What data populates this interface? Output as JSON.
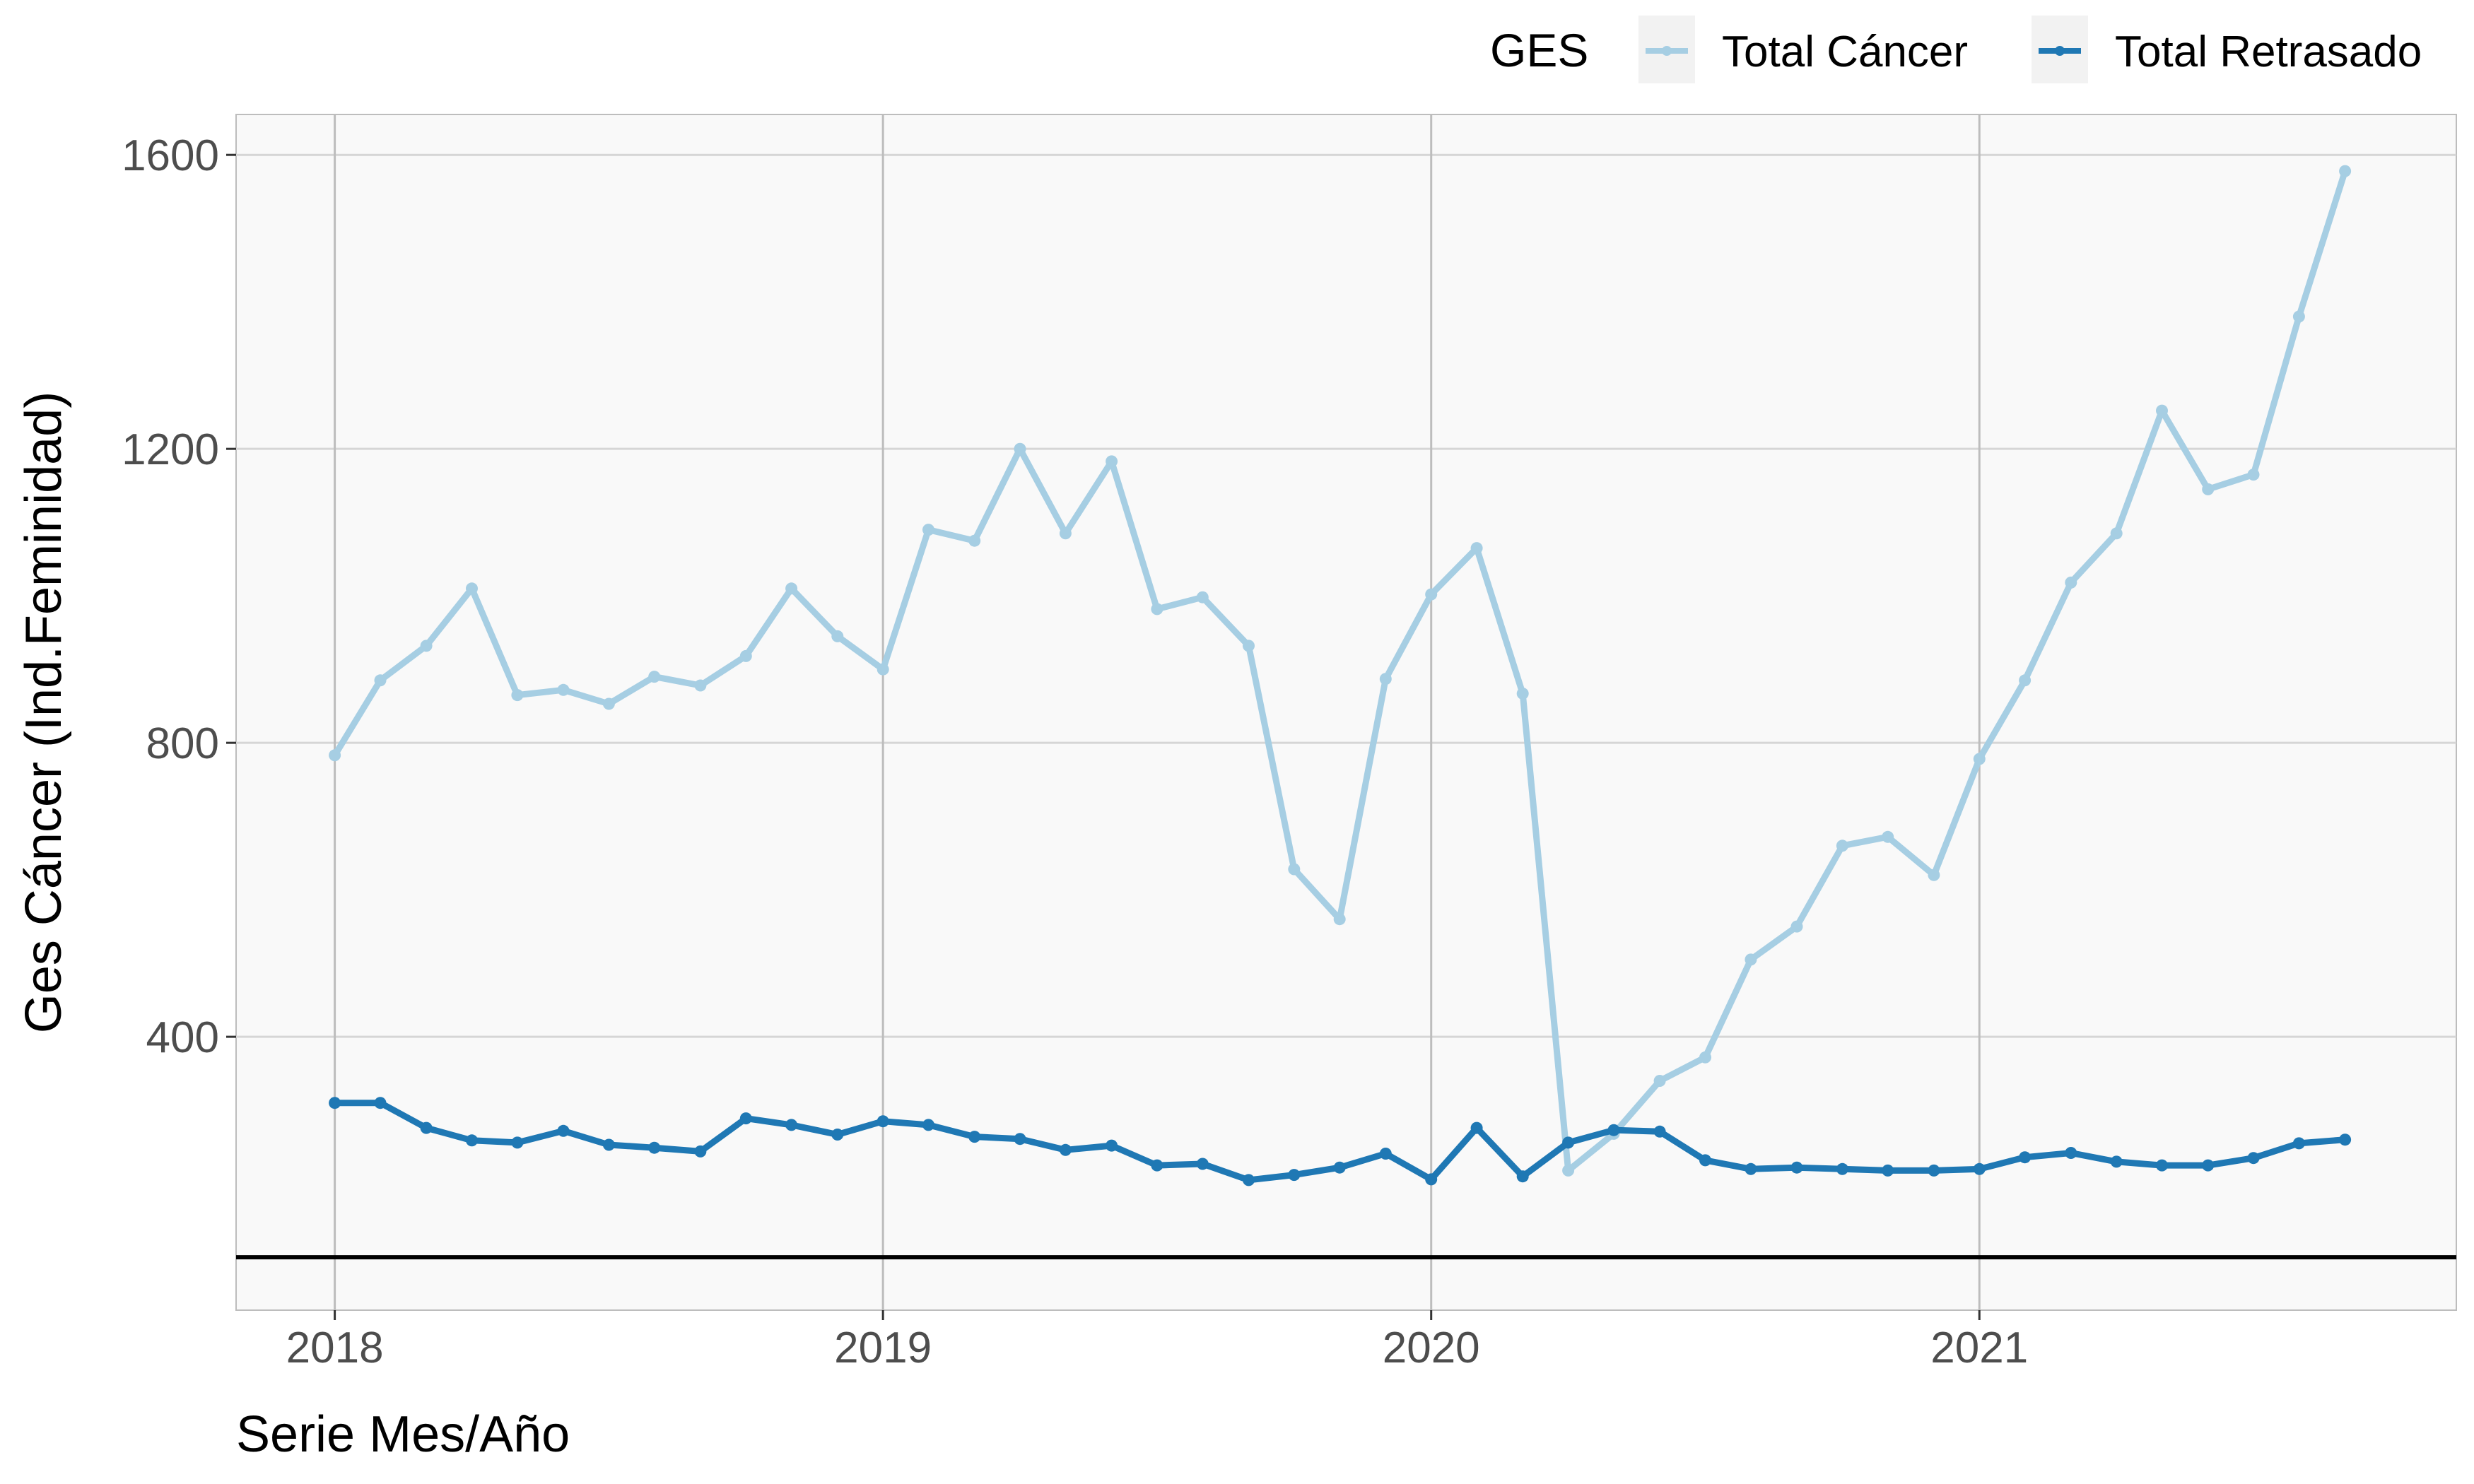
{
  "chart_data": {
    "type": "line",
    "xlabel": "Serie Mes/Año",
    "ylabel": "Ges Cáncer (Ind.Feminidad)",
    "legend": {
      "title": "GES",
      "position": "top-right"
    },
    "xlim": [
      2017.82,
      2021.87
    ],
    "ylim": [
      28,
      1655
    ],
    "x_ticks": [
      2018,
      2019,
      2020,
      2021
    ],
    "x_tick_labels": [
      "2018",
      "2019",
      "2020",
      "2021"
    ],
    "y_ticks": [
      400,
      800,
      1200,
      1600
    ],
    "y_tick_labels": [
      "400",
      "800",
      "1200",
      "1600"
    ],
    "grid": true,
    "reference_line_y": 100,
    "x": [
      2018.0,
      2018.083,
      2018.167,
      2018.25,
      2018.333,
      2018.417,
      2018.5,
      2018.583,
      2018.667,
      2018.75,
      2018.833,
      2018.917,
      2019.0,
      2019.083,
      2019.167,
      2019.25,
      2019.333,
      2019.417,
      2019.5,
      2019.583,
      2019.667,
      2019.75,
      2019.833,
      2019.917,
      2020.0,
      2020.083,
      2020.167,
      2020.25,
      2020.333,
      2020.417,
      2020.5,
      2020.583,
      2020.667,
      2020.75,
      2020.833,
      2020.917,
      2021.0,
      2021.083,
      2021.167,
      2021.25,
      2021.333,
      2021.417,
      2021.5,
      2021.583,
      2021.667
    ],
    "series": [
      {
        "name": "Total Cáncer",
        "color": "#a6cee3",
        "values": [
          783,
          885,
          932,
          1010,
          865,
          872,
          853,
          890,
          878,
          918,
          1010,
          945,
          900,
          1090,
          1075,
          1200,
          1085,
          1183,
          982,
          998,
          932,
          628,
          560,
          887,
          1002,
          1065,
          867,
          218,
          268,
          340,
          372,
          505,
          550,
          660,
          672,
          620,
          778,
          885,
          1018,
          1085,
          1252,
          1145,
          1165,
          1380,
          1578
        ]
      },
      {
        "name": "Total Retrasado",
        "color": "#1f78b4",
        "values": [
          310,
          310,
          276,
          259,
          256,
          272,
          253,
          249,
          244,
          289,
          280,
          267,
          285,
          280,
          264,
          261,
          246,
          252,
          225,
          227,
          205,
          212,
          222,
          241,
          206,
          276,
          210,
          256,
          273,
          271,
          232,
          220,
          222,
          220,
          218,
          218,
          220,
          236,
          242,
          230,
          225,
          225,
          235,
          255,
          260
        ]
      }
    ]
  }
}
